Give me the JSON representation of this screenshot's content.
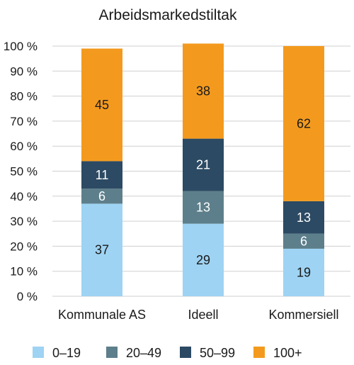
{
  "chart_data": {
    "type": "bar",
    "stacked": true,
    "title": "Arbeidsmarkedstiltak",
    "xlabel": "",
    "ylabel": "",
    "ylim": [
      0,
      100
    ],
    "y_ticks": [
      "0 %",
      "10 %",
      "20 %",
      "30 %",
      "40 %",
      "50 %",
      "60 %",
      "70 %",
      "80 %",
      "90 %",
      "100 %"
    ],
    "grid": true,
    "legend_position": "bottom",
    "categories": [
      "Kommunale AS",
      "Ideell",
      "Kommersiell"
    ],
    "series": [
      {
        "name": "0–19",
        "color": "#9ed3f3",
        "label_color": "#1a1a1a",
        "values": [
          37,
          29,
          19
        ]
      },
      {
        "name": "20–49",
        "color": "#5d7f8b",
        "label_color": "#ffffff",
        "values": [
          6,
          13,
          6
        ]
      },
      {
        "name": "50–99",
        "color": "#2c4a63",
        "label_color": "#ffffff",
        "values": [
          11,
          21,
          13
        ]
      },
      {
        "name": "100+",
        "color": "#f39a1e",
        "label_color": "#1a1a1a",
        "values": [
          45,
          38,
          62
        ]
      }
    ]
  }
}
